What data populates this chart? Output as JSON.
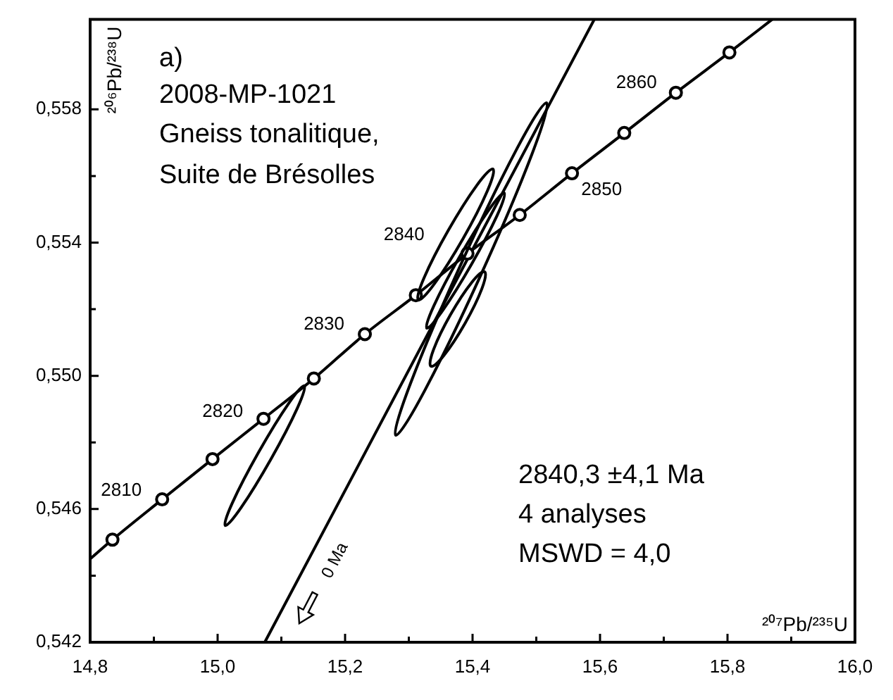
{
  "chart_data": {
    "type": "scatter",
    "xlabel": "²⁰⁷Pb/²³⁵U",
    "ylabel": "²⁰⁶Pb/²³⁸U",
    "xlim": [
      14.8,
      16.0
    ],
    "ylim": [
      0.542,
      0.5607
    ],
    "xticks": [
      {
        "value": 14.8,
        "label": "14,8"
      },
      {
        "value": 14.9,
        "label": null
      },
      {
        "value": 15.0,
        "label": "15,0"
      },
      {
        "value": 15.1,
        "label": null
      },
      {
        "value": 15.2,
        "label": "15,2"
      },
      {
        "value": 15.3,
        "label": null
      },
      {
        "value": 15.4,
        "label": "15,4"
      },
      {
        "value": 15.5,
        "label": null
      },
      {
        "value": 15.6,
        "label": "15,6"
      },
      {
        "value": 15.7,
        "label": null
      },
      {
        "value": 15.8,
        "label": "15,8"
      },
      {
        "value": 15.9,
        "label": null
      },
      {
        "value": 16.0,
        "label": "16,0"
      }
    ],
    "yticks": [
      {
        "value": 0.542,
        "label": "0,542"
      },
      {
        "value": 0.544,
        "label": null
      },
      {
        "value": 0.546,
        "label": "0,546"
      },
      {
        "value": 0.548,
        "label": null
      },
      {
        "value": 0.55,
        "label": "0,550"
      },
      {
        "value": 0.552,
        "label": null
      },
      {
        "value": 0.554,
        "label": "0,554"
      },
      {
        "value": 0.556,
        "label": null
      },
      {
        "value": 0.558,
        "label": "0,558"
      }
    ],
    "series": [
      {
        "type": "scatter",
        "color": "#000000",
        "marker": "circle",
        "x": [
          14.835,
          14.913,
          14.992,
          15.072,
          15.151,
          15.231,
          15.311,
          15.392,
          15.474,
          15.556,
          15.638,
          15.719,
          15.803
        ],
        "values": [
          0.54508,
          0.54629,
          0.5475,
          0.54871,
          0.54992,
          0.55125,
          0.55242,
          0.55367,
          0.55483,
          0.55608,
          0.55729,
          0.5585,
          0.55971
        ]
      },
      {
        "type": "line",
        "color": "#000000",
        "marker": "none",
        "x": [
          14.8,
          14.835,
          14.913,
          14.992,
          15.072,
          15.151,
          15.231,
          15.311,
          15.392,
          15.474,
          15.556,
          15.638,
          15.719,
          15.803,
          15.87
        ],
        "values": [
          0.5445,
          0.54508,
          0.54629,
          0.5475,
          0.54871,
          0.54992,
          0.55125,
          0.55242,
          0.55367,
          0.55483,
          0.55608,
          0.55729,
          0.5585,
          0.55971,
          0.5607
        ]
      },
      {
        "type": "line",
        "color": "#000000",
        "marker": "none",
        "x": [
          15.074,
          15.591
        ],
        "values": [
          0.542,
          0.5607
        ]
      }
    ],
    "annotations": [
      "a)",
      "2008-MP-1021",
      "Gneiss tonalitique,",
      "Suite de Brésolles",
      "2840,3 ±4,1 Ma",
      "4 analyses",
      "MSWD = 4,0",
      "0 Ma",
      {
        "text": "2810",
        "x": 14.913,
        "y": 0.54629
      },
      {
        "text": "2820",
        "x": 15.072,
        "y": 0.54871
      },
      {
        "text": "2830",
        "x": 15.231,
        "y": 0.55125
      },
      {
        "text": "2840",
        "x": 15.392,
        "y": 0.55367
      },
      {
        "text": "2850",
        "x": 15.556,
        "y": 0.55608
      },
      {
        "text": "2860",
        "x": 15.719,
        "y": 0.5585
      }
    ]
  }
}
